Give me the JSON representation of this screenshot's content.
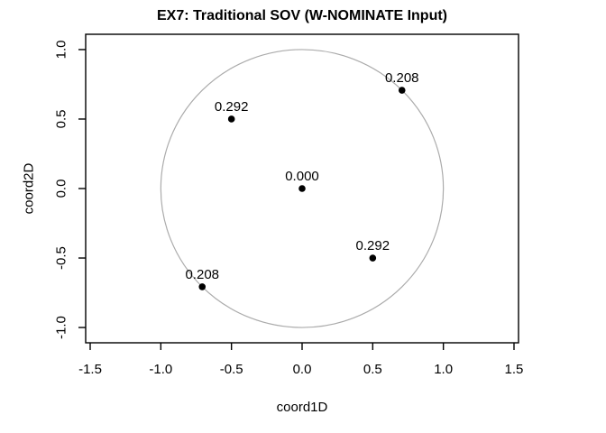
{
  "title": "EX7: Traditional SOV (W-NOMINATE Input)",
  "chart_data": {
    "type": "scatter",
    "title": "EX7: Traditional SOV (W-NOMINATE Input)",
    "xlabel": "coord1D",
    "ylabel": "coord2D",
    "xlim": [
      -1.532,
      1.532
    ],
    "ylim": [
      -1.11,
      1.11
    ],
    "x_ticks": [
      -1.5,
      -1.0,
      -0.5,
      0.0,
      0.5,
      1.0,
      1.5
    ],
    "x_tick_labels": [
      "-1.5",
      "-1.0",
      "-0.5",
      "0.0",
      "0.5",
      "1.0",
      "1.5"
    ],
    "y_ticks": [
      -1.0,
      -0.5,
      0.0,
      0.5,
      1.0
    ],
    "y_tick_labels": [
      "-1.0",
      "-0.5",
      "0.0",
      "0.5",
      "1.0"
    ],
    "grid": false,
    "legend": null,
    "reference_circle": {
      "cx": 0,
      "cy": 0,
      "r": 1.0,
      "color": "#ababab"
    },
    "points": [
      {
        "x": 0.707,
        "y": 0.707,
        "label": "0.208"
      },
      {
        "x": -0.5,
        "y": 0.5,
        "label": "0.292"
      },
      {
        "x": 0.0,
        "y": 0.0,
        "label": "0.000"
      },
      {
        "x": 0.5,
        "y": -0.5,
        "label": "0.292"
      },
      {
        "x": -0.707,
        "y": -0.707,
        "label": "0.208"
      }
    ],
    "point_color": "#000000",
    "axis_color": "#000000",
    "text_color": "#000000"
  }
}
